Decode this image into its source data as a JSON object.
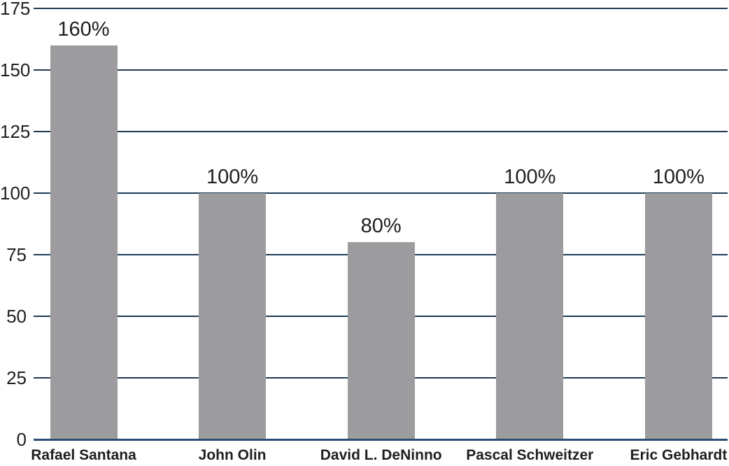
{
  "chart_data": {
    "type": "bar",
    "categories": [
      "Rafael Santana",
      "John Olin",
      "David L. DeNinno",
      "Pascal Schweitzer",
      "Eric Gebhardt"
    ],
    "values": [
      160,
      100,
      80,
      100,
      100
    ],
    "value_labels": [
      "160%",
      "100%",
      "80%",
      "100%",
      "100%"
    ],
    "title": "",
    "xlabel": "",
    "ylabel": "",
    "ylim": [
      0,
      175
    ],
    "yticks": [
      0,
      25,
      50,
      75,
      100,
      125,
      150,
      175
    ],
    "grid": true,
    "legend": "none",
    "colors": {
      "bar": "#9c9c9e",
      "gridline": "#1d3b55",
      "baseline": "#2a4e73",
      "text": "#1f1f1f"
    }
  }
}
